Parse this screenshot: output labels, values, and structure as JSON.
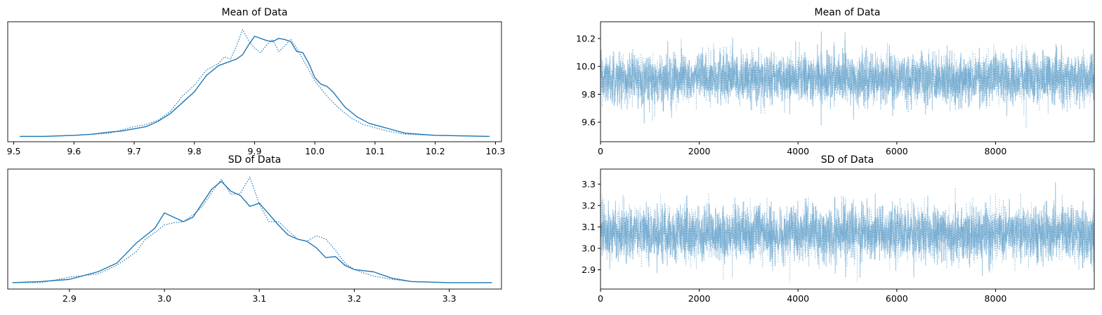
{
  "colors": {
    "kde": "#1f77b4",
    "trace": "#1f77b4",
    "axes": "#000000"
  },
  "chart_data": [
    {
      "type": "line",
      "title": "Mean of Data",
      "xlabel": "",
      "ylabel": "",
      "xlim": [
        9.49,
        10.31
      ],
      "y_visible": false,
      "xticks": [
        9.5,
        9.6,
        9.7,
        9.8,
        9.9,
        10.0,
        10.1,
        10.2,
        10.3
      ],
      "xtick_labels": [
        "9.5",
        "9.6",
        "9.7",
        "9.8",
        "9.9",
        "10.0",
        "10.1",
        "10.2",
        "10.3"
      ],
      "grid": false,
      "series": [
        {
          "style": "solid",
          "x": [
            9.51,
            9.55,
            9.6,
            9.63,
            9.66,
            9.68,
            9.7,
            9.72,
            9.74,
            9.76,
            9.78,
            9.8,
            9.82,
            9.84,
            9.86,
            9.87,
            9.88,
            9.89,
            9.9,
            9.92,
            9.93,
            9.94,
            9.95,
            9.96,
            9.97,
            9.98,
            9.99,
            10.0,
            10.01,
            10.02,
            10.03,
            10.05,
            10.07,
            10.09,
            10.11,
            10.13,
            10.15,
            10.2,
            10.29
          ],
          "y": [
            0.01,
            0.01,
            0.02,
            0.03,
            0.05,
            0.06,
            0.08,
            0.1,
            0.15,
            0.22,
            0.32,
            0.42,
            0.57,
            0.66,
            0.7,
            0.72,
            0.76,
            0.85,
            0.93,
            0.89,
            0.88,
            0.91,
            0.9,
            0.88,
            0.79,
            0.78,
            0.68,
            0.55,
            0.49,
            0.47,
            0.42,
            0.28,
            0.19,
            0.13,
            0.1,
            0.07,
            0.04,
            0.02,
            0.01
          ]
        },
        {
          "style": "dotted",
          "x": [
            9.51,
            9.55,
            9.6,
            9.63,
            9.66,
            9.68,
            9.7,
            9.72,
            9.74,
            9.76,
            9.78,
            9.8,
            9.82,
            9.84,
            9.85,
            9.86,
            9.87,
            9.88,
            9.89,
            9.9,
            9.91,
            9.92,
            9.93,
            9.94,
            9.95,
            9.96,
            9.97,
            9.98,
            9.99,
            10.0,
            10.02,
            10.04,
            10.06,
            10.08,
            10.1,
            10.12,
            10.15,
            10.2,
            10.29
          ],
          "y": [
            0.01,
            0.01,
            0.02,
            0.03,
            0.04,
            0.07,
            0.1,
            0.12,
            0.16,
            0.24,
            0.38,
            0.48,
            0.62,
            0.68,
            0.74,
            0.72,
            0.84,
            0.99,
            0.89,
            0.82,
            0.78,
            0.85,
            0.9,
            0.79,
            0.84,
            0.9,
            0.82,
            0.72,
            0.62,
            0.52,
            0.38,
            0.27,
            0.18,
            0.12,
            0.09,
            0.06,
            0.03,
            0.02,
            0.01
          ]
        }
      ]
    },
    {
      "type": "line",
      "title": "Mean of Data",
      "xlabel": "",
      "ylabel": "",
      "xlim": [
        0,
        9999
      ],
      "ylim": [
        9.46,
        10.32
      ],
      "xticks": [
        0,
        2000,
        4000,
        6000,
        8000
      ],
      "xtick_labels": [
        "0",
        "2000",
        "4000",
        "6000",
        "8000"
      ],
      "yticks": [
        9.6,
        9.8,
        10.0,
        10.2
      ],
      "ytick_labels": [
        "9.6",
        "9.8",
        "10.0",
        "10.2"
      ],
      "grid": false,
      "trace": {
        "n_draws": 10000,
        "center": 9.91,
        "spread": 0.09,
        "min": 9.51,
        "max": 10.28
      },
      "series": [
        {
          "style": "solid",
          "alpha": 0.4
        },
        {
          "style": "dotted",
          "alpha": 0.4
        }
      ]
    },
    {
      "type": "line",
      "title": "SD of Data",
      "xlabel": "",
      "ylabel": "",
      "xlim": [
        2.835,
        3.355
      ],
      "y_visible": false,
      "xticks": [
        2.9,
        3.0,
        3.1,
        3.2,
        3.3
      ],
      "xtick_labels": [
        "2.9",
        "3.0",
        "3.1",
        "3.2",
        "3.3"
      ],
      "grid": false,
      "series": [
        {
          "style": "solid",
          "x": [
            2.84,
            2.87,
            2.9,
            2.93,
            2.95,
            2.97,
            2.98,
            2.99,
            3.0,
            3.01,
            3.02,
            3.03,
            3.04,
            3.05,
            3.06,
            3.07,
            3.08,
            3.09,
            3.1,
            3.11,
            3.12,
            3.13,
            3.14,
            3.15,
            3.16,
            3.17,
            3.18,
            3.19,
            3.2,
            3.22,
            3.24,
            3.26,
            3.3,
            3.345
          ],
          "y": [
            0.02,
            0.03,
            0.05,
            0.12,
            0.2,
            0.38,
            0.45,
            0.52,
            0.66,
            0.62,
            0.58,
            0.62,
            0.75,
            0.88,
            0.95,
            0.86,
            0.82,
            0.72,
            0.75,
            0.65,
            0.55,
            0.46,
            0.42,
            0.4,
            0.34,
            0.25,
            0.26,
            0.18,
            0.14,
            0.12,
            0.06,
            0.03,
            0.02,
            0.02
          ]
        },
        {
          "style": "dotted",
          "x": [
            2.84,
            2.87,
            2.9,
            2.93,
            2.95,
            2.97,
            2.98,
            2.99,
            3.0,
            3.01,
            3.02,
            3.03,
            3.04,
            3.05,
            3.06,
            3.07,
            3.08,
            3.09,
            3.1,
            3.11,
            3.12,
            3.13,
            3.14,
            3.15,
            3.16,
            3.17,
            3.18,
            3.19,
            3.2,
            3.22,
            3.24,
            3.26,
            3.3,
            3.345
          ],
          "y": [
            0.02,
            0.02,
            0.07,
            0.1,
            0.18,
            0.3,
            0.42,
            0.48,
            0.55,
            0.57,
            0.58,
            0.64,
            0.72,
            0.85,
            0.97,
            0.83,
            0.84,
            0.99,
            0.74,
            0.58,
            0.58,
            0.5,
            0.42,
            0.4,
            0.45,
            0.42,
            0.32,
            0.2,
            0.14,
            0.08,
            0.05,
            0.03,
            0.02,
            0.02
          ]
        }
      ]
    },
    {
      "type": "line",
      "title": "SD of Data",
      "xlabel": "",
      "ylabel": "",
      "xlim": [
        0,
        9999
      ],
      "ylim": [
        2.81,
        3.37
      ],
      "xticks": [
        0,
        2000,
        4000,
        6000,
        8000
      ],
      "xtick_labels": [
        "0",
        "2000",
        "4000",
        "6000",
        "8000"
      ],
      "yticks": [
        2.9,
        3.0,
        3.1,
        3.2,
        3.3
      ],
      "ytick_labels": [
        "2.9",
        "3.0",
        "3.1",
        "3.2",
        "3.3"
      ],
      "grid": false,
      "trace": {
        "n_draws": 10000,
        "center": 3.07,
        "spread": 0.065,
        "min": 2.84,
        "max": 3.34
      },
      "series": [
        {
          "style": "solid",
          "alpha": 0.4
        },
        {
          "style": "dotted",
          "alpha": 0.4
        }
      ]
    }
  ]
}
